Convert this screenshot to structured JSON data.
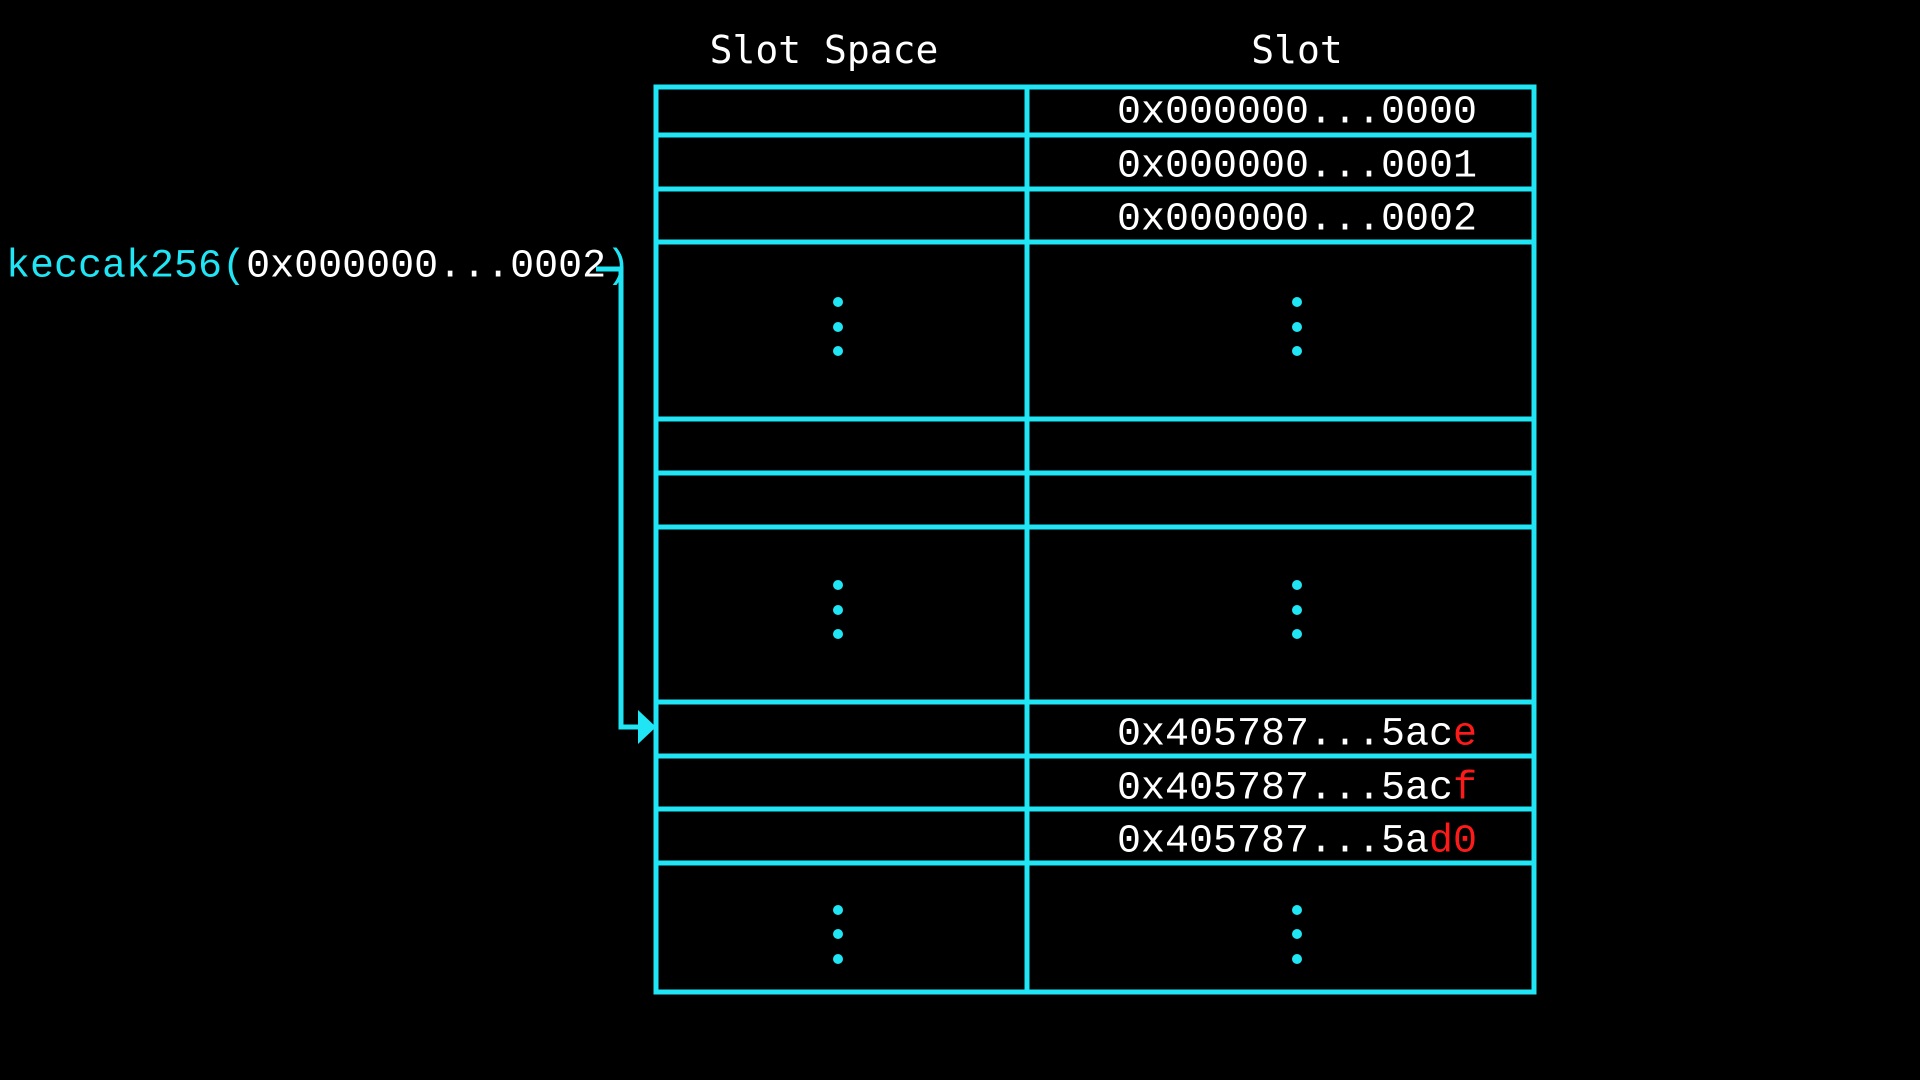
{
  "headers": {
    "slot_space": "Slot Space",
    "slot": "Slot"
  },
  "expression": {
    "function": "keccak256",
    "open_paren": "(",
    "argument": "0x000000...0002",
    "close_paren": ")"
  },
  "slots_top": [
    "0x000000...0000",
    "0x000000...0001",
    "0x000000...0002"
  ],
  "slots_bottom": [
    {
      "prefix": "0x405787...5ac",
      "highlight": "e"
    },
    {
      "prefix": "0x405787...5ac",
      "highlight": "f"
    },
    {
      "prefix": "0x405787...5a",
      "highlight": "d0"
    }
  ],
  "colors": {
    "line": "#1fe5f5",
    "text": "#ffffff",
    "highlight": "#ff1a1a",
    "background": "#000000"
  }
}
